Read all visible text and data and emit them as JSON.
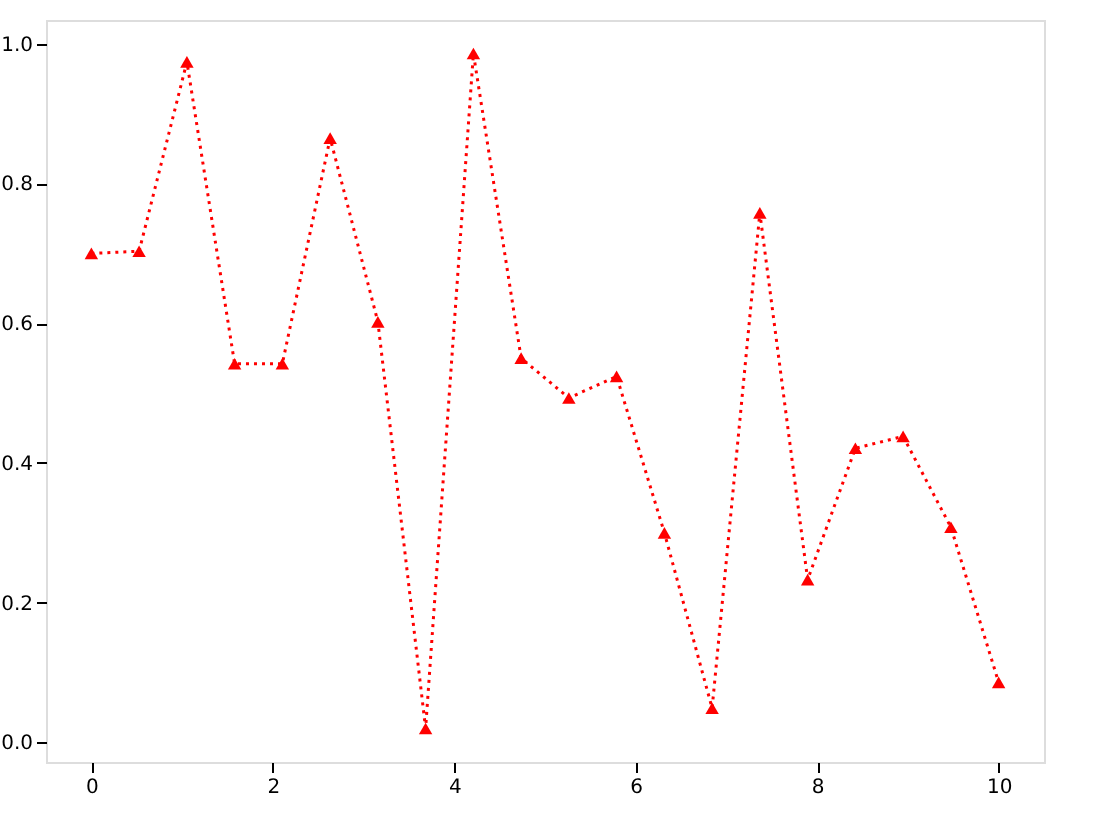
{
  "chart_data": {
    "type": "line",
    "x": [
      0,
      0.526,
      1.053,
      1.579,
      2.105,
      2.632,
      3.158,
      3.684,
      4.211,
      4.737,
      5.263,
      5.789,
      6.316,
      6.842,
      7.368,
      7.895,
      8.421,
      8.947,
      9.474,
      10
    ],
    "series": [
      {
        "color": "#ff0000",
        "values": [
          0.7,
          0.703,
          0.974,
          0.542,
          0.542,
          0.865,
          0.602,
          0.02,
          0.986,
          0.55,
          0.493,
          0.524,
          0.3,
          0.049,
          0.758,
          0.233,
          0.421,
          0.438,
          0.308,
          0.086
        ]
      }
    ],
    "xlim": [
      -0.5,
      10.5
    ],
    "ylim": [
      -0.028,
      1.034
    ],
    "xticks": [
      0,
      2,
      4,
      6,
      8,
      10
    ],
    "yticks": [
      {
        "value": 0,
        "label": "0.0"
      },
      0.2,
      0.4,
      0.6,
      0.8,
      {
        "value": 1,
        "label": "1.0"
      }
    ],
    "marker": "triangle",
    "line_style": "dotted",
    "grid": false
  }
}
